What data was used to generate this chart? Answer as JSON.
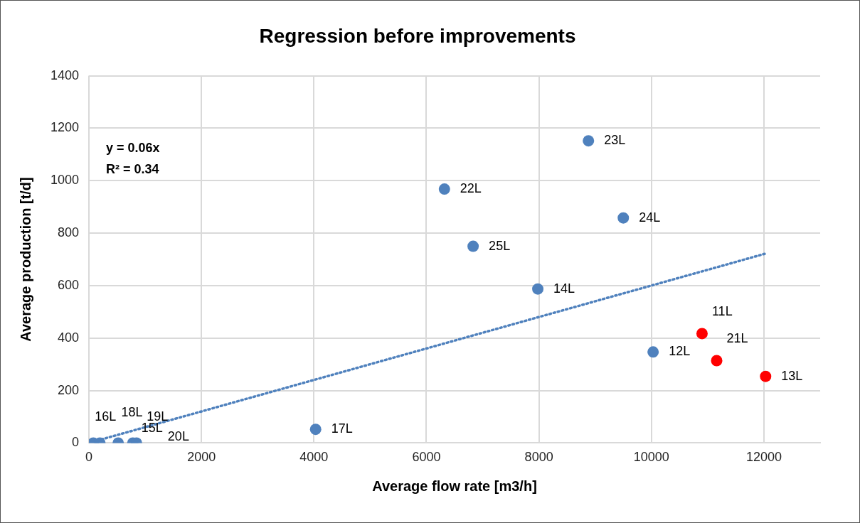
{
  "chart_data": {
    "type": "scatter",
    "title": "Regression before improvements",
    "xlabel": "Average flow rate [m3/h]",
    "ylabel": "Average production [t/d]",
    "xlim": [
      0,
      13000
    ],
    "xticks": [
      0,
      2000,
      4000,
      6000,
      8000,
      10000,
      12000
    ],
    "ylim": [
      0,
      1400
    ],
    "yticks": [
      0,
      200,
      400,
      600,
      800,
      1000,
      1200,
      1400
    ],
    "grid": true,
    "legend": false,
    "marker": "circle",
    "series": [
      {
        "color": "#4f81bd",
        "x": [
          78,
          195,
          520,
          780,
          845,
          4030,
          6320,
          6830,
          7980,
          8880,
          9500,
          10030
        ],
        "values": [
          0,
          0,
          0,
          0,
          0,
          52,
          968,
          750,
          587,
          1152,
          858,
          347
        ]
      },
      {
        "color": "#ff0000",
        "x": [
          10900,
          11160,
          12030
        ],
        "values": [
          417,
          314,
          254
        ]
      },
      {
        "type": "line",
        "color": "#4f81bd",
        "line_style": "dotted",
        "marker": "none",
        "x": [
          78,
          12030
        ],
        "values": [
          5,
          722
        ]
      }
    ],
    "annotations": [
      "y = 0.06x",
      "R² = 0.34",
      {
        "text": "16L",
        "x": 78,
        "y": 0
      },
      {
        "text": "18L",
        "x": 195,
        "y": 0
      },
      {
        "text": "19L",
        "x": 520,
        "y": 0
      },
      {
        "text": "15L",
        "x": 780,
        "y": 0
      },
      {
        "text": "20L",
        "x": 845,
        "y": 0
      },
      {
        "text": "17L",
        "x": 4030,
        "y": 52
      },
      {
        "text": "22L",
        "x": 6320,
        "y": 968
      },
      {
        "text": "25L",
        "x": 6830,
        "y": 750
      },
      {
        "text": "14L",
        "x": 7980,
        "y": 587
      },
      {
        "text": "23L",
        "x": 8880,
        "y": 1152
      },
      {
        "text": "24L",
        "x": 9500,
        "y": 858
      },
      {
        "text": "12L",
        "x": 10030,
        "y": 347
      },
      {
        "text": "11L",
        "x": 10900,
        "y": 417
      },
      {
        "text": "21L",
        "x": 11160,
        "y": 314
      },
      {
        "text": "13L",
        "x": 12030,
        "y": 254
      }
    ]
  }
}
